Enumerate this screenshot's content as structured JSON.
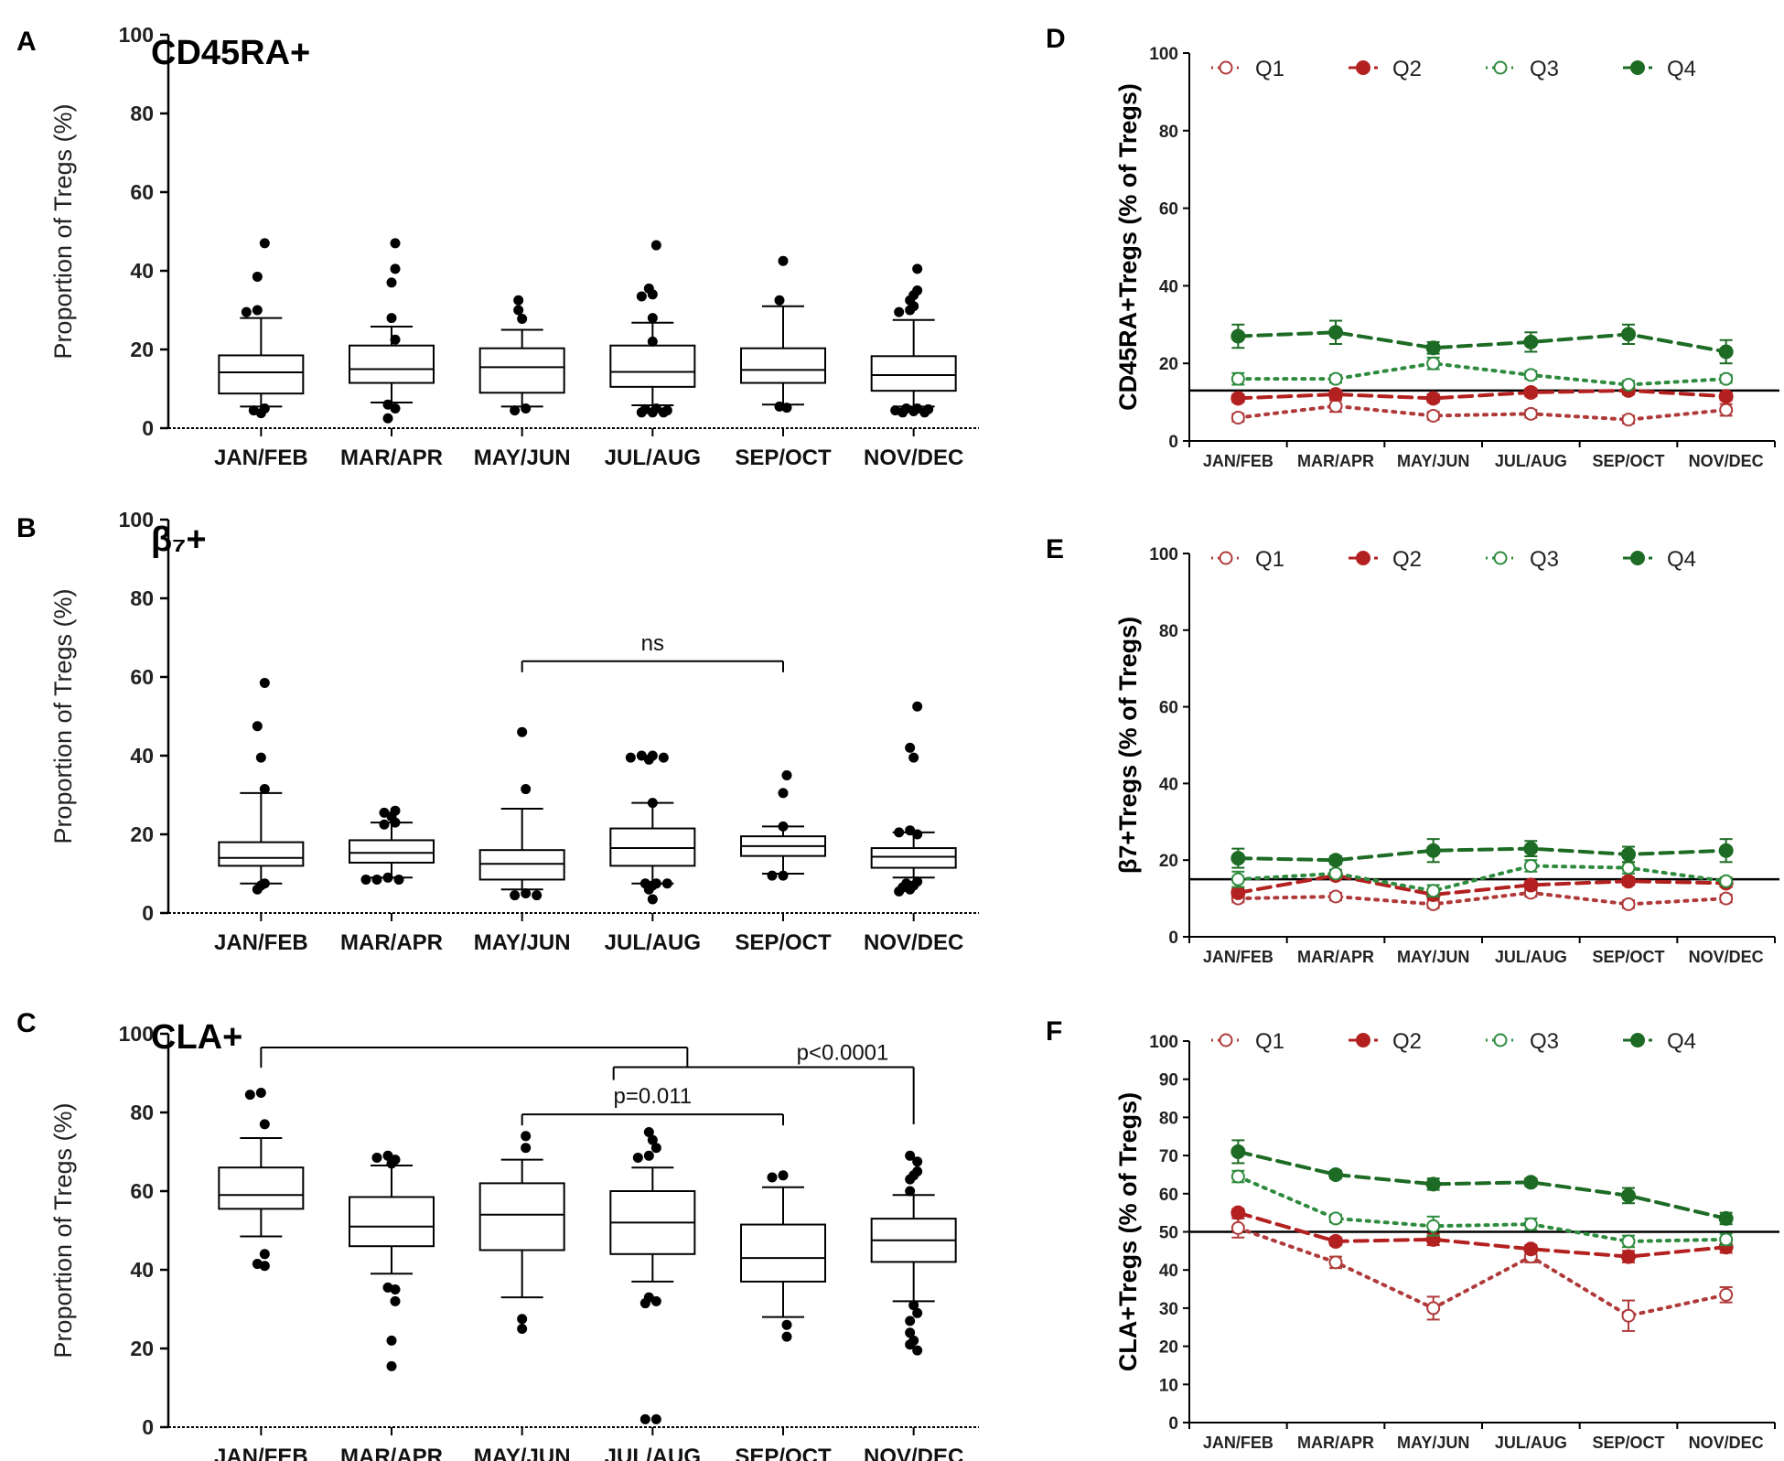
{
  "chart_data": [
    {
      "panel": "A",
      "type": "box",
      "title": "CD45RA+",
      "ylabel": "Proportion of Tregs (%)",
      "ylim": [
        0,
        100
      ],
      "yticks": [
        0,
        20,
        40,
        60,
        80,
        100
      ],
      "categories": [
        "JAN/FEB",
        "MAR/APR",
        "MAY/JUN",
        "JUL/AUG",
        "SEP/OCT",
        "NOV/DEC"
      ],
      "boxes": [
        {
          "whisker_low": 5.5,
          "q1": 8.8,
          "median": 14.2,
          "q3": 18.5,
          "whisker_high": 28,
          "outliers": [
            47,
            38.5,
            30,
            29.5,
            5,
            4.5,
            3.8
          ]
        },
        {
          "whisker_low": 6.5,
          "q1": 11.5,
          "median": 15,
          "q3": 21,
          "whisker_high": 25.8,
          "outliers": [
            47,
            40.5,
            37,
            28,
            22.5,
            6,
            5,
            2.5
          ]
        },
        {
          "whisker_low": 5.5,
          "q1": 9,
          "median": 15.5,
          "q3": 20.3,
          "whisker_high": 25,
          "outliers": [
            32.5,
            30,
            27.8,
            5,
            4.5
          ]
        },
        {
          "whisker_low": 5.8,
          "q1": 10.5,
          "median": 14.3,
          "q3": 21,
          "whisker_high": 26.8,
          "outliers": [
            46.5,
            35.5,
            34,
            33.5,
            28,
            22,
            5,
            4.8,
            4.5,
            4,
            4,
            4
          ]
        },
        {
          "whisker_low": 6,
          "q1": 11.5,
          "median": 14.8,
          "q3": 20.3,
          "whisker_high": 31,
          "outliers": [
            42.5,
            32.5,
            5.5,
            5.2
          ]
        },
        {
          "whisker_low": 5.5,
          "q1": 9.5,
          "median": 13.5,
          "q3": 18.3,
          "whisker_high": 27.5,
          "outliers": [
            40.5,
            35,
            33.8,
            32.5,
            31,
            30,
            29.5,
            5,
            5,
            4.8,
            4.5,
            4.3,
            4,
            4
          ]
        }
      ],
      "annotations": []
    },
    {
      "panel": "B",
      "type": "box",
      "title": "β₇+",
      "ylabel": "Proportion of Tregs (%)",
      "ylim": [
        0,
        100
      ],
      "yticks": [
        0,
        20,
        40,
        60,
        80,
        100
      ],
      "categories": [
        "JAN/FEB",
        "MAR/APR",
        "MAY/JUN",
        "JUL/AUG",
        "SEP/OCT",
        "NOV/DEC"
      ],
      "boxes": [
        {
          "whisker_low": 7.5,
          "q1": 12,
          "median": 14,
          "q3": 18,
          "whisker_high": 30.5,
          "outliers": [
            58.5,
            47.5,
            39.5,
            31.5,
            7.5,
            7,
            6
          ]
        },
        {
          "whisker_low": 9,
          "q1": 12.8,
          "median": 15.3,
          "q3": 18.5,
          "whisker_high": 23,
          "outliers": [
            26,
            25.5,
            24.5,
            23,
            22.5,
            9,
            8.5,
            8.5,
            8.5
          ]
        },
        {
          "whisker_low": 6,
          "q1": 8.5,
          "median": 12.5,
          "q3": 16,
          "whisker_high": 26.5,
          "outliers": [
            46,
            31.5,
            5,
            4.5,
            4.5
          ]
        },
        {
          "whisker_low": 7.5,
          "q1": 12,
          "median": 16.5,
          "q3": 21.5,
          "whisker_high": 28,
          "outliers": [
            40,
            40,
            39.5,
            39.5,
            39,
            28,
            7.5,
            7.5,
            7.5,
            7,
            6,
            3.5
          ]
        },
        {
          "whisker_low": 10,
          "q1": 14.5,
          "median": 17,
          "q3": 19.5,
          "whisker_high": 22,
          "outliers": [
            35,
            30.5,
            22,
            9.5,
            9.5
          ]
        },
        {
          "whisker_low": 9,
          "q1": 11.5,
          "median": 14.3,
          "q3": 16.5,
          "whisker_high": 20.5,
          "outliers": [
            52.5,
            42,
            39.5,
            21,
            20.5,
            20,
            8,
            7.5,
            7,
            6.5,
            6,
            5.5
          ]
        }
      ],
      "annotations": [
        {
          "label": "ns",
          "from": "MAY/JUN",
          "to": "SEP/OCT",
          "y": 64
        }
      ]
    },
    {
      "panel": "C",
      "type": "box",
      "title": "CLA+",
      "ylabel": "Proportion of Tregs (%)",
      "ylim": [
        0,
        100
      ],
      "yticks": [
        0,
        20,
        40,
        60,
        80,
        100
      ],
      "categories": [
        "JAN/FEB",
        "MAR/APR",
        "MAY/JUN",
        "JUL/AUG",
        "SEP/OCT",
        "NOV/DEC"
      ],
      "boxes": [
        {
          "whisker_low": 48.5,
          "q1": 55.5,
          "median": 59,
          "q3": 66,
          "whisker_high": 73.5,
          "outliers": [
            85,
            84.5,
            77,
            44,
            41.5,
            41
          ]
        },
        {
          "whisker_low": 39,
          "q1": 46,
          "median": 51,
          "q3": 58.5,
          "whisker_high": 66.5,
          "outliers": [
            69,
            68.5,
            68,
            67,
            35.5,
            35,
            32,
            22,
            15.5
          ]
        },
        {
          "whisker_low": 33,
          "q1": 45,
          "median": 54,
          "q3": 62,
          "whisker_high": 68,
          "outliers": [
            74,
            71,
            27.5,
            25
          ]
        },
        {
          "whisker_low": 37,
          "q1": 44,
          "median": 52,
          "q3": 60,
          "whisker_high": 66,
          "outliers": [
            75,
            73,
            71,
            69,
            68.5,
            33,
            32,
            31.5,
            2,
            2
          ]
        },
        {
          "whisker_low": 28,
          "q1": 37,
          "median": 43,
          "q3": 51.5,
          "whisker_high": 61,
          "outliers": [
            64,
            63.5,
            26,
            23
          ]
        },
        {
          "whisker_low": 32,
          "q1": 42,
          "median": 47.5,
          "q3": 53,
          "whisker_high": 59,
          "outliers": [
            69,
            67.5,
            65,
            64,
            63,
            60,
            31,
            29,
            27,
            24,
            22,
            21,
            19.5
          ]
        }
      ],
      "annotations": [
        {
          "label": "",
          "from": "JAN/FEB",
          "to": "SEP/OCT",
          "y": 96.5
        },
        {
          "label": "p<0.0001",
          "from": "MAY/JUN",
          "to": "NOV/DEC",
          "y": 91.5
        },
        {
          "label": "p=0.011",
          "from": "MAY/JUN",
          "to": "SEP/OCT",
          "y": 79.5
        }
      ]
    },
    {
      "panel": "D",
      "type": "line",
      "ylabel": "CD45RA+Tregs (%  of Tregs)",
      "ylim": [
        0,
        100
      ],
      "yticks": [
        0,
        20,
        40,
        60,
        80,
        100
      ],
      "categories": [
        "JAN/FEB",
        "MAR/APR",
        "MAY/JUN",
        "JUL/AUG",
        "SEP/OCT",
        "NOV/DEC"
      ],
      "reference_line": 13,
      "series": [
        {
          "name": "Q1",
          "color": "#b03a3a",
          "style": "dotted",
          "marker": "open",
          "values": [
            6,
            9,
            6.5,
            7,
            5.5,
            8
          ],
          "errors": [
            1,
            1.5,
            1,
            1,
            1,
            1.5
          ]
        },
        {
          "name": "Q2",
          "color": "#b32020",
          "style": "dashed",
          "marker": "filled",
          "values": [
            11,
            12,
            11,
            12.5,
            13,
            11.5
          ],
          "errors": [
            1,
            1,
            1,
            1,
            1,
            1
          ]
        },
        {
          "name": "Q3",
          "color": "#2e8b3e",
          "style": "dotted",
          "marker": "open",
          "values": [
            16,
            16,
            20,
            17,
            14.5,
            16
          ],
          "errors": [
            1.5,
            1,
            1.5,
            1,
            1,
            1
          ]
        },
        {
          "name": "Q4",
          "color": "#1d6b24",
          "style": "dashed",
          "marker": "filled",
          "values": [
            27,
            28,
            24,
            25.5,
            27.5,
            23
          ],
          "errors": [
            3,
            3,
            1.5,
            2.5,
            2.5,
            3
          ]
        }
      ]
    },
    {
      "panel": "E",
      "type": "line",
      "ylabel": "β7+Tregs (%  of Tregs)",
      "ylim": [
        0,
        100
      ],
      "yticks": [
        0,
        20,
        40,
        60,
        80,
        100
      ],
      "categories": [
        "JAN/FEB",
        "MAR/APR",
        "MAY/JUN",
        "JUL/AUG",
        "SEP/OCT",
        "NOV/DEC"
      ],
      "reference_line": 15,
      "series": [
        {
          "name": "Q1",
          "color": "#b03a3a",
          "style": "dotted",
          "marker": "open",
          "values": [
            10,
            10.5,
            8.5,
            11.5,
            8.5,
            10
          ],
          "errors": [
            1,
            1,
            1,
            1,
            1,
            1
          ]
        },
        {
          "name": "Q2",
          "color": "#b32020",
          "style": "dashed",
          "marker": "filled",
          "values": [
            11.5,
            16,
            11,
            13.5,
            14.5,
            14
          ],
          "errors": [
            1,
            1,
            1,
            1,
            1,
            1
          ]
        },
        {
          "name": "Q3",
          "color": "#2e8b3e",
          "style": "dotted",
          "marker": "open",
          "values": [
            15,
            16.5,
            12,
            18.5,
            18,
            14.5
          ],
          "errors": [
            2,
            1,
            1.5,
            1.5,
            1.5,
            1
          ]
        },
        {
          "name": "Q4",
          "color": "#1d6b24",
          "style": "dashed",
          "marker": "filled",
          "values": [
            20.5,
            20,
            22.5,
            23,
            21.5,
            22.5
          ],
          "errors": [
            2.5,
            1,
            3,
            2,
            2,
            3
          ]
        }
      ]
    },
    {
      "panel": "F",
      "type": "line",
      "ylabel": "CLA+Tregs (%  of Tregs)",
      "ylim": [
        0,
        100
      ],
      "yticks": [
        0,
        10,
        20,
        30,
        40,
        50,
        60,
        70,
        80,
        90,
        100
      ],
      "categories": [
        "JAN/FEB",
        "MAR/APR",
        "MAY/JUN",
        "JUL/AUG",
        "SEP/OCT",
        "NOV/DEC"
      ],
      "reference_line": 50,
      "series": [
        {
          "name": "Q1",
          "color": "#b03a3a",
          "style": "dotted",
          "marker": "open",
          "values": [
            51,
            42,
            30,
            43.5,
            28,
            33.5
          ],
          "errors": [
            2.5,
            1.5,
            3,
            1.5,
            4,
            2
          ]
        },
        {
          "name": "Q2",
          "color": "#b32020",
          "style": "dashed",
          "marker": "filled",
          "values": [
            55,
            47.5,
            48,
            45.5,
            43.5,
            46
          ],
          "errors": [
            1,
            1,
            1.5,
            1,
            1.5,
            1.5
          ]
        },
        {
          "name": "Q3",
          "color": "#2e8b3e",
          "style": "dotted",
          "marker": "open",
          "values": [
            64.5,
            53.5,
            51.5,
            52,
            47.5,
            48
          ],
          "errors": [
            1.5,
            1,
            2.5,
            1.5,
            1.5,
            1.5
          ]
        },
        {
          "name": "Q4",
          "color": "#1d6b24",
          "style": "dashed",
          "marker": "filled",
          "values": [
            71,
            65,
            62.5,
            63,
            59.5,
            53.5
          ],
          "errors": [
            3,
            1,
            1.5,
            1,
            2,
            1.5
          ]
        }
      ]
    }
  ]
}
